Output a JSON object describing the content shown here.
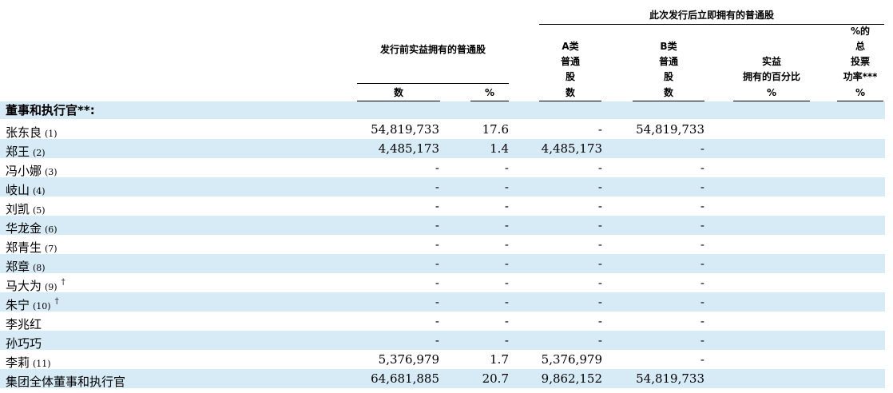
{
  "header": {
    "group_after": "此次发行后立即拥有的普通股",
    "pre_offering": "发行前实益拥有的普通股",
    "class_a": [
      "A类",
      "普通",
      "股"
    ],
    "class_b": [
      "B类",
      "普通",
      "股"
    ],
    "beneficial_pct": [
      "实益",
      "拥有的百分比"
    ],
    "voting_pct": [
      "%的",
      "总",
      "投票",
      "功率***"
    ],
    "sub_number": "数",
    "sub_percent": "%"
  },
  "section_title": "董事和执行官**:",
  "rows": [
    {
      "name": "张东良",
      "note": "(1)",
      "dagger": "",
      "pre_num": "54,819,733",
      "pre_pct": "17.6",
      "a_num": "-",
      "b_num": "54,819,733"
    },
    {
      "name": "郑王",
      "note": "(2)",
      "dagger": "",
      "pre_num": "4,485,173",
      "pre_pct": "1.4",
      "a_num": "4,485,173",
      "b_num": "-"
    },
    {
      "name": "冯小娜",
      "note": "(3)",
      "dagger": "",
      "pre_num": "-",
      "pre_pct": "-",
      "a_num": "-",
      "b_num": "-"
    },
    {
      "name": "岐山",
      "note": "(4)",
      "dagger": "",
      "pre_num": "-",
      "pre_pct": "-",
      "a_num": "-",
      "b_num": "-"
    },
    {
      "name": "刘凯",
      "note": "(5)",
      "dagger": "",
      "pre_num": "-",
      "pre_pct": "-",
      "a_num": "-",
      "b_num": "-"
    },
    {
      "name": "华龙金",
      "note": "(6)",
      "dagger": "",
      "pre_num": "-",
      "pre_pct": "-",
      "a_num": "-",
      "b_num": "-"
    },
    {
      "name": "郑青生",
      "note": "(7)",
      "dagger": "",
      "pre_num": "-",
      "pre_pct": "-",
      "a_num": "-",
      "b_num": "-"
    },
    {
      "name": "郑章",
      "note": "(8)",
      "dagger": "",
      "pre_num": "-",
      "pre_pct": "-",
      "a_num": "-",
      "b_num": "-"
    },
    {
      "name": "马大为",
      "note": "(9)",
      "dagger": "†",
      "pre_num": "-",
      "pre_pct": "-",
      "a_num": "-",
      "b_num": "-"
    },
    {
      "name": "朱宁",
      "note": "(10)",
      "dagger": "†",
      "pre_num": "-",
      "pre_pct": "-",
      "a_num": "-",
      "b_num": "-"
    },
    {
      "name": "李兆红",
      "note": "",
      "dagger": "",
      "pre_num": "-",
      "pre_pct": "-",
      "a_num": "-",
      "b_num": "-"
    },
    {
      "name": "孙巧巧",
      "note": "",
      "dagger": "",
      "pre_num": "-",
      "pre_pct": "-",
      "a_num": "-",
      "b_num": "-"
    },
    {
      "name": "李莉",
      "note": "(11)",
      "dagger": "",
      "pre_num": "5,376,979",
      "pre_pct": "1.7",
      "a_num": "5,376,979",
      "b_num": "-"
    },
    {
      "name": "集团全体董事和执行官",
      "note": "",
      "dagger": "",
      "pre_num": "64,681,885",
      "pre_pct": "20.7",
      "a_num": "9,862,152",
      "b_num": "54,819,733"
    }
  ],
  "colors": {
    "band": "#d6ebf5",
    "text": "#000000",
    "rule": "#000000"
  }
}
